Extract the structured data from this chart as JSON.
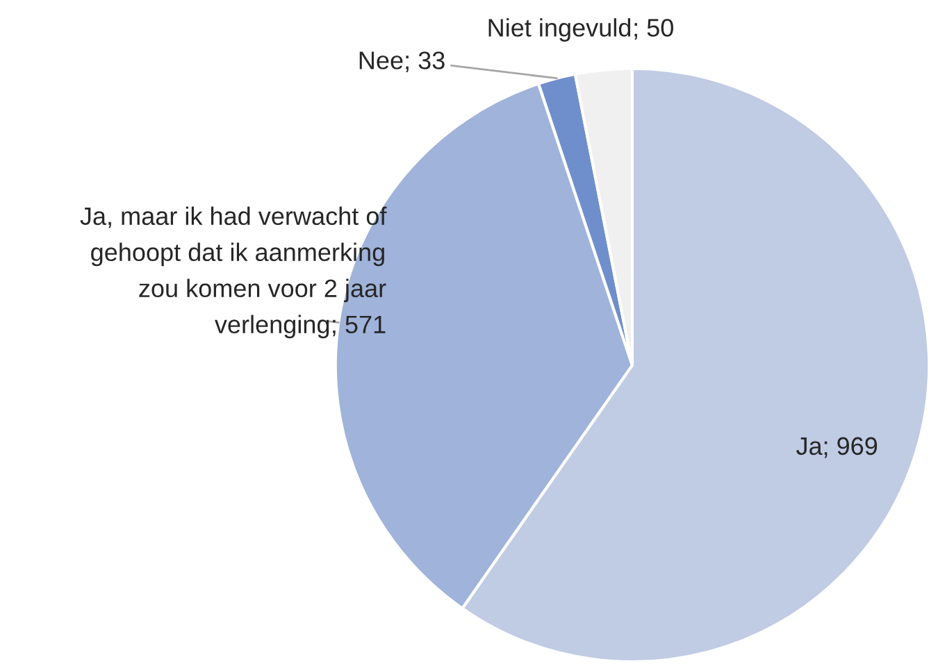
{
  "chart_data": {
    "type": "pie",
    "categories": [
      "Ja",
      "Ja, maar ik had verwacht of gehoopt dat ik aanmerking zou komen voor 2 jaar verlenging",
      "Nee",
      "Niet ingevuld"
    ],
    "values": [
      969,
      571,
      33,
      50
    ],
    "colors": [
      "#c0cbe4",
      "#a0b3da",
      "#6f8fcc",
      "#f0f0f0"
    ],
    "value_labels": [
      "; 969",
      "; 571",
      "; 33",
      "; 50"
    ],
    "legend": false
  }
}
